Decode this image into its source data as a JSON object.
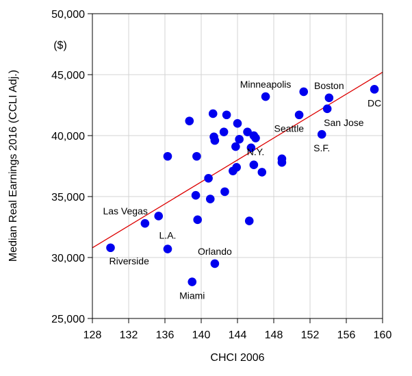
{
  "chart_data": {
    "type": "scatter",
    "xlabel": "CHCI 2006",
    "ylabel": "Median Real Earnings 2016 (CCLI Adj.)",
    "y_unit": "($)",
    "xlim": [
      128,
      160
    ],
    "ylim": [
      25000,
      50000
    ],
    "x_ticks": [
      128,
      132,
      136,
      140,
      144,
      148,
      152,
      156,
      160
    ],
    "y_ticks": [
      25000,
      30000,
      35000,
      40000,
      45000,
      50000
    ],
    "x_tick_labels": [
      "128",
      "132",
      "136",
      "140",
      "144",
      "148",
      "152",
      "156",
      "160"
    ],
    "y_tick_labels": [
      "25,000",
      "30,000",
      "35,000",
      "40,000",
      "45,000",
      "50,000"
    ],
    "grid": true,
    "colors": {
      "points": "#0000ee",
      "trend": "#dd0000",
      "grid": "#d3d3d3"
    },
    "trendline": {
      "start": [
        128,
        30800
      ],
      "end": [
        160,
        45200
      ]
    },
    "points": [
      {
        "x": 130.0,
        "y": 30800,
        "label": "Riverside"
      },
      {
        "x": 133.8,
        "y": 32800,
        "label": "Las Vegas"
      },
      {
        "x": 135.3,
        "y": 33400
      },
      {
        "x": 136.3,
        "y": 30700,
        "label": "L.A."
      },
      {
        "x": 136.3,
        "y": 38300
      },
      {
        "x": 138.7,
        "y": 41200
      },
      {
        "x": 139.0,
        "y": 28000,
        "label": "Miami"
      },
      {
        "x": 139.4,
        "y": 35100
      },
      {
        "x": 139.5,
        "y": 38300
      },
      {
        "x": 139.6,
        "y": 33100
      },
      {
        "x": 140.8,
        "y": 36500
      },
      {
        "x": 141.0,
        "y": 34800
      },
      {
        "x": 141.3,
        "y": 41800
      },
      {
        "x": 141.4,
        "y": 39900
      },
      {
        "x": 141.5,
        "y": 39600
      },
      {
        "x": 141.5,
        "y": 29500,
        "label": "Orlando"
      },
      {
        "x": 142.5,
        "y": 40300
      },
      {
        "x": 142.6,
        "y": 35400
      },
      {
        "x": 142.8,
        "y": 41700
      },
      {
        "x": 143.5,
        "y": 37100
      },
      {
        "x": 143.8,
        "y": 39100
      },
      {
        "x": 143.9,
        "y": 37400
      },
      {
        "x": 144.0,
        "y": 41000
      },
      {
        "x": 144.2,
        "y": 39700
      },
      {
        "x": 145.1,
        "y": 40300
      },
      {
        "x": 145.3,
        "y": 33000
      },
      {
        "x": 145.5,
        "y": 39000
      },
      {
        "x": 145.8,
        "y": 37600
      },
      {
        "x": 145.8,
        "y": 40000
      },
      {
        "x": 146.0,
        "y": 39800,
        "label": "N.Y."
      },
      {
        "x": 146.7,
        "y": 37000
      },
      {
        "x": 147.1,
        "y": 43200,
        "label": "Minneapolis"
      },
      {
        "x": 148.9,
        "y": 38100
      },
      {
        "x": 148.9,
        "y": 37800
      },
      {
        "x": 150.8,
        "y": 41700,
        "label": "Seattle"
      },
      {
        "x": 151.3,
        "y": 43600
      },
      {
        "x": 153.3,
        "y": 40100,
        "label": "S.F."
      },
      {
        "x": 153.9,
        "y": 42200,
        "label": "San Jose"
      },
      {
        "x": 154.1,
        "y": 43100,
        "label": "Boston"
      },
      {
        "x": 159.1,
        "y": 43800,
        "label": "DC"
      }
    ],
    "annotations": [
      {
        "text": "Riverside",
        "x": 130.0,
        "y": 30800,
        "anchor": "below-right"
      },
      {
        "text": "Las Vegas",
        "x": 133.8,
        "y": 32800,
        "anchor": "above-left"
      },
      {
        "text": "L.A.",
        "x": 136.3,
        "y": 30700,
        "anchor": "above"
      },
      {
        "text": "Miami",
        "x": 139.0,
        "y": 28000,
        "anchor": "below"
      },
      {
        "text": "Orlando",
        "x": 141.5,
        "y": 29500,
        "anchor": "above"
      },
      {
        "text": "N.Y.",
        "x": 146.0,
        "y": 39800,
        "anchor": "below"
      },
      {
        "text": "Minneapolis",
        "x": 147.1,
        "y": 43200,
        "anchor": "above"
      },
      {
        "text": "Seattle",
        "x": 150.8,
        "y": 41700,
        "anchor": "below-left"
      },
      {
        "text": "S.F.",
        "x": 153.3,
        "y": 40100,
        "anchor": "below"
      },
      {
        "text": "San Jose",
        "x": 153.9,
        "y": 42200,
        "anchor": "below-right"
      },
      {
        "text": "Boston",
        "x": 154.1,
        "y": 43100,
        "anchor": "above"
      },
      {
        "text": "DC",
        "x": 159.1,
        "y": 43800,
        "anchor": "below"
      }
    ]
  }
}
